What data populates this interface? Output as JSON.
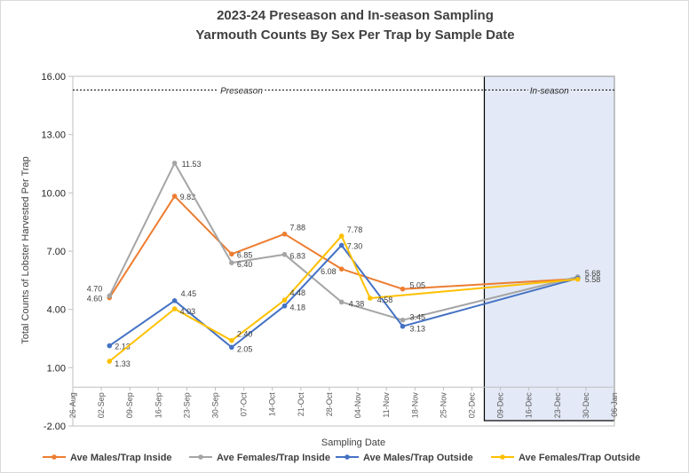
{
  "chart_data": {
    "type": "line",
    "title_lines": [
      "2023-24 Preseason and In-season Sampling",
      "Yarmouth Counts By Sex Per Trap by Sample Date"
    ],
    "xlabel": "Sampling Date",
    "ylabel": "Total Counts of Lobster Harvested Per Trap",
    "ylim": [
      -2,
      16
    ],
    "y_ticks": [
      "-2.00",
      "1.00",
      "4.00",
      "7.00",
      "10.00",
      "13.00",
      "16.00"
    ],
    "y_tick_values": [
      -2,
      1,
      4,
      7,
      10,
      13,
      16
    ],
    "x_ticks": [
      "26-Aug",
      "02-Sep",
      "09-Sep",
      "16-Sep",
      "23-Sep",
      "30-Sep",
      "07-Oct",
      "14-Oct",
      "21-Oct",
      "28-Oct",
      "04-Nov",
      "11-Nov",
      "18-Nov",
      "25-Nov",
      "02-Dec",
      "09-Dec",
      "16-Dec",
      "23-Dec",
      "30-Dec",
      "06-Jan"
    ],
    "x_dates": [
      "2023-09-04",
      "2023-09-20",
      "2023-10-04",
      "2023-10-17",
      "2023-10-31",
      "2023-11-07",
      "2023-11-15",
      "2023-12-28"
    ],
    "reference_line": 15.3,
    "regions": [
      {
        "label": "Preseason"
      },
      {
        "label": "In-season"
      }
    ],
    "grid": false,
    "legend_position": "bottom",
    "series": [
      {
        "name": "Ave Males/Trap Inside",
        "color": "#ED7D31",
        "values": [
          4.6,
          9.83,
          6.85,
          7.88,
          6.08,
          null,
          5.05,
          5.58
        ],
        "labels": [
          "4.60",
          "9.83",
          "6.85",
          "7.88",
          "6.08",
          "",
          "5.05",
          "5.58"
        ]
      },
      {
        "name": "Ave Females/Trap Inside",
        "color": "#A5A5A5",
        "values": [
          4.7,
          11.53,
          6.4,
          6.83,
          4.38,
          null,
          3.45,
          5.68
        ],
        "labels": [
          "4.70",
          "11.53",
          "6.40",
          "6.83",
          "4.38",
          "",
          "3.45",
          "5.68"
        ]
      },
      {
        "name": "Ave Males/Trap Outside",
        "color": "#4472C4",
        "values": [
          2.13,
          4.45,
          2.05,
          4.18,
          7.3,
          null,
          3.13,
          5.6
        ],
        "labels": [
          "2.13",
          "4.45",
          "2.05",
          "4.18",
          "7.30",
          "",
          "3.13",
          ""
        ]
      },
      {
        "name": "Ave Females/Trap Outside",
        "color": "#FFC000",
        "values": [
          1.33,
          4.03,
          2.4,
          4.48,
          7.78,
          4.58,
          null,
          5.55
        ],
        "labels": [
          "1.33",
          "4.03",
          "2.40",
          "4.48",
          "7.78",
          "4.58",
          "",
          ""
        ]
      }
    ]
  }
}
